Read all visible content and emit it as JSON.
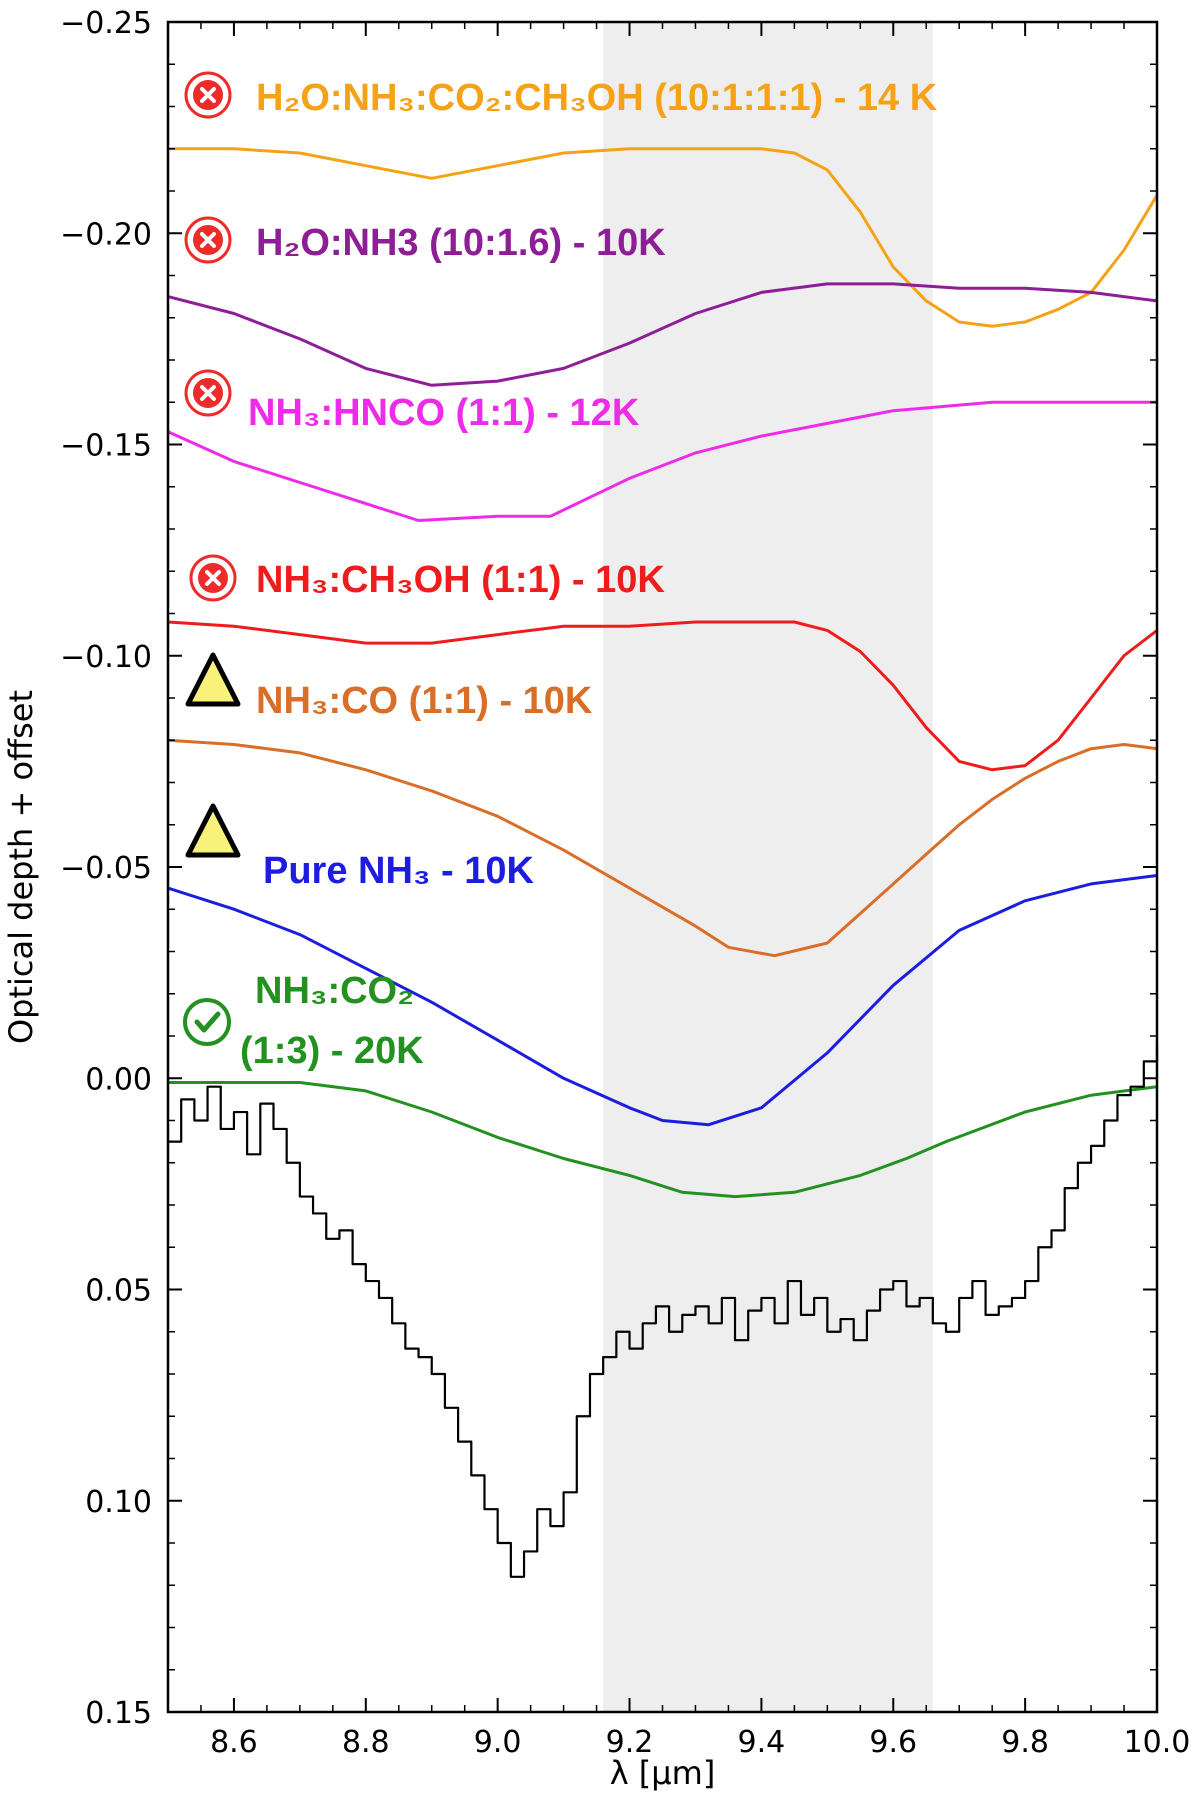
{
  "chart_data": {
    "type": "line",
    "xlabel": "λ [μm]",
    "ylabel": "Optical depth + offset",
    "xlim": [
      8.5,
      10.0
    ],
    "ylim": [
      0.15,
      -0.25
    ],
    "y_inverted": true,
    "grid": false,
    "x_ticks": [
      "8.6",
      "8.8",
      "9.0",
      "9.2",
      "9.4",
      "9.6",
      "9.8",
      "10.0"
    ],
    "y_ticks": [
      "−0.25",
      "−0.20",
      "−0.15",
      "−0.10",
      "−0.05",
      "0.00",
      "0.05",
      "0.10",
      "0.15"
    ],
    "shaded_region": {
      "x_start": 9.16,
      "x_end": 9.66,
      "color": "#eeeeee"
    },
    "series": [
      {
        "id": "h2o-nh3-co2-ch3oh",
        "label": "H2O:NH3:CO2:CH3OH (10:1:1:1) - 14 K",
        "color": "#f5a216",
        "marker": "cross",
        "x": [
          8.5,
          8.6,
          8.7,
          8.8,
          8.9,
          9.0,
          9.1,
          9.2,
          9.3,
          9.4,
          9.45,
          9.5,
          9.55,
          9.6,
          9.65,
          9.7,
          9.75,
          9.8,
          9.85,
          9.9,
          9.95,
          10.0
        ],
        "y": [
          -0.22,
          -0.22,
          -0.219,
          -0.216,
          -0.213,
          -0.216,
          -0.219,
          -0.22,
          -0.22,
          -0.22,
          -0.219,
          -0.215,
          -0.205,
          -0.192,
          -0.184,
          -0.179,
          -0.178,
          -0.179,
          -0.182,
          -0.186,
          -0.196,
          -0.209
        ]
      },
      {
        "id": "h2o-nh3",
        "label": "H2O:NH3 (10:1.6) - 10K",
        "color": "#8e1e96",
        "marker": "cross",
        "x": [
          8.5,
          8.6,
          8.7,
          8.8,
          8.9,
          9.0,
          9.1,
          9.2,
          9.3,
          9.4,
          9.5,
          9.6,
          9.7,
          9.8,
          9.9,
          10.0
        ],
        "y": [
          -0.185,
          -0.181,
          -0.175,
          -0.168,
          -0.164,
          -0.165,
          -0.168,
          -0.174,
          -0.181,
          -0.186,
          -0.188,
          -0.188,
          -0.187,
          -0.187,
          -0.186,
          -0.184
        ]
      },
      {
        "id": "nh3-hnco",
        "label": "NH3:HNCO (1:1) - 12K",
        "color": "#ee2be8",
        "marker": "cross",
        "x": [
          8.5,
          8.6,
          8.7,
          8.8,
          8.88,
          9.0,
          9.08,
          9.2,
          9.3,
          9.4,
          9.5,
          9.6,
          9.75,
          9.9,
          10.0
        ],
        "y": [
          -0.153,
          -0.146,
          -0.141,
          -0.136,
          -0.132,
          -0.133,
          -0.133,
          -0.142,
          -0.148,
          -0.152,
          -0.155,
          -0.158,
          -0.16,
          -0.16,
          -0.16
        ]
      },
      {
        "id": "nh3-ch3oh",
        "label": "NH3:CH3OH (1:1) - 10K",
        "color": "#ee1c1c",
        "marker": "cross",
        "x": [
          8.5,
          8.6,
          8.7,
          8.8,
          8.85,
          8.9,
          9.0,
          9.1,
          9.2,
          9.3,
          9.4,
          9.45,
          9.5,
          9.55,
          9.6,
          9.65,
          9.7,
          9.75,
          9.8,
          9.85,
          9.9,
          9.95,
          10.0
        ],
        "y": [
          -0.108,
          -0.107,
          -0.105,
          -0.103,
          -0.103,
          -0.103,
          -0.105,
          -0.107,
          -0.107,
          -0.108,
          -0.108,
          -0.108,
          -0.106,
          -0.101,
          -0.093,
          -0.083,
          -0.075,
          -0.073,
          -0.074,
          -0.08,
          -0.09,
          -0.1,
          -0.106
        ]
      },
      {
        "id": "nh3-co",
        "label": "NH3:CO (1:1) - 10K",
        "color": "#d86e27",
        "marker": "triangle",
        "x": [
          8.5,
          8.6,
          8.7,
          8.8,
          8.9,
          9.0,
          9.1,
          9.2,
          9.3,
          9.35,
          9.42,
          9.5,
          9.55,
          9.6,
          9.65,
          9.7,
          9.75,
          9.8,
          9.85,
          9.9,
          9.95,
          10.0
        ],
        "y": [
          -0.08,
          -0.079,
          -0.077,
          -0.073,
          -0.068,
          -0.062,
          -0.054,
          -0.045,
          -0.036,
          -0.031,
          -0.029,
          -0.032,
          -0.039,
          -0.046,
          -0.053,
          -0.06,
          -0.066,
          -0.071,
          -0.075,
          -0.078,
          -0.079,
          -0.078
        ]
      },
      {
        "id": "pure-nh3",
        "label": "Pure NH3 - 10K",
        "color": "#1d1de0",
        "marker": "triangle",
        "x": [
          8.5,
          8.6,
          8.7,
          8.8,
          8.9,
          9.0,
          9.1,
          9.2,
          9.25,
          9.32,
          9.4,
          9.5,
          9.6,
          9.7,
          9.8,
          9.9,
          10.0
        ],
        "y": [
          -0.045,
          -0.04,
          -0.034,
          -0.026,
          -0.018,
          -0.009,
          0.0,
          0.007,
          0.01,
          0.011,
          0.007,
          -0.006,
          -0.022,
          -0.035,
          -0.042,
          -0.046,
          -0.048
        ]
      },
      {
        "id": "nh3-co2",
        "label": "NH3:CO2 (1:3) - 20K",
        "color": "#23911f",
        "marker": "check",
        "x": [
          8.5,
          8.6,
          8.7,
          8.8,
          8.9,
          9.0,
          9.1,
          9.2,
          9.28,
          9.36,
          9.45,
          9.55,
          9.62,
          9.68,
          9.8,
          9.9,
          10.0
        ],
        "y": [
          0.001,
          0.001,
          0.001,
          0.003,
          0.008,
          0.014,
          0.019,
          0.023,
          0.027,
          0.028,
          0.027,
          0.023,
          0.019,
          0.015,
          0.008,
          0.004,
          0.002
        ]
      },
      {
        "id": "observed",
        "label": "",
        "color": "#000000",
        "style": "steps",
        "x": [
          8.5,
          8.52,
          8.54,
          8.56,
          8.58,
          8.6,
          8.62,
          8.64,
          8.66,
          8.68,
          8.7,
          8.72,
          8.74,
          8.76,
          8.78,
          8.8,
          8.82,
          8.84,
          8.86,
          8.88,
          8.9,
          8.92,
          8.94,
          8.96,
          8.98,
          9.0,
          9.02,
          9.04,
          9.06,
          9.08,
          9.1,
          9.12,
          9.14,
          9.16,
          9.18,
          9.2,
          9.22,
          9.24,
          9.26,
          9.28,
          9.3,
          9.32,
          9.34,
          9.36,
          9.38,
          9.4,
          9.42,
          9.44,
          9.46,
          9.48,
          9.5,
          9.52,
          9.54,
          9.56,
          9.58,
          9.6,
          9.62,
          9.64,
          9.66,
          9.68,
          9.7,
          9.72,
          9.74,
          9.76,
          9.78,
          9.8,
          9.82,
          9.84,
          9.86,
          9.88,
          9.9,
          9.92,
          9.94,
          9.96,
          9.98,
          10.0
        ],
        "y": [
          0.015,
          0.005,
          0.01,
          0.002,
          0.012,
          0.008,
          0.018,
          0.006,
          0.012,
          0.02,
          0.028,
          0.032,
          0.038,
          0.036,
          0.044,
          0.048,
          0.052,
          0.058,
          0.064,
          0.066,
          0.07,
          0.078,
          0.086,
          0.094,
          0.102,
          0.11,
          0.118,
          0.112,
          0.102,
          0.106,
          0.098,
          0.08,
          0.07,
          0.066,
          0.06,
          0.064,
          0.058,
          0.054,
          0.06,
          0.056,
          0.054,
          0.058,
          0.052,
          0.062,
          0.055,
          0.052,
          0.058,
          0.048,
          0.056,
          0.052,
          0.06,
          0.057,
          0.062,
          0.055,
          0.05,
          0.048,
          0.054,
          0.052,
          0.058,
          0.06,
          0.052,
          0.048,
          0.056,
          0.054,
          0.052,
          0.048,
          0.04,
          0.036,
          0.026,
          0.02,
          0.016,
          0.01,
          0.004,
          0.002,
          -0.004,
          -0.008
        ]
      }
    ]
  },
  "labels": {
    "h2o_nh3_co2_ch3oh": "H₂O:NH₃:CO₂:CH₃OH (10:1:1:1) - 14 K",
    "h2o_nh3": "H₂O:NH3 (10:1.6) - 10K",
    "nh3_hnco": "NH₃:HNCO (1:1) - 12K",
    "nh3_ch3oh": "NH₃:CH₃OH (1:1) - 10K",
    "nh3_co": "NH₃:CO (1:1) - 10K",
    "pure_nh3": "Pure NH₃ - 10K",
    "nh3_co2_line1": "NH₃:CO₂",
    "nh3_co2_line2": "(1:3) - 20K"
  },
  "icons": {
    "cross": "cross-circle-icon",
    "triangle": "warning-triangle-icon",
    "check": "check-circle-icon"
  }
}
